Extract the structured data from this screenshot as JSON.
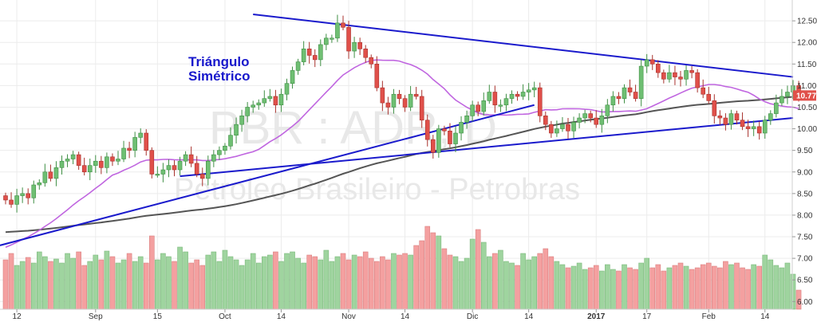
{
  "chart_data": {
    "type": "candlestick",
    "watermark_symbol": "PBR : ADR, D",
    "watermark_name": "Petroleo Brasileiro - Petrobras",
    "annotation": [
      "Triángulo",
      "Simétrico"
    ],
    "last_price": "10.77",
    "y_axis": {
      "side": "right",
      "ylim": [
        5.95,
        12.65
      ],
      "ticks": [
        "6.00",
        "6.50",
        "7.00",
        "7.50",
        "8.00",
        "8.50",
        "9.00",
        "9.50",
        "10.00",
        "10.50",
        "11.00",
        "11.50",
        "12.00",
        "12.50"
      ]
    },
    "x_axis": {
      "labels": [
        {
          "text": "12",
          "bar": 2
        },
        {
          "text": "Sep",
          "bar": 16
        },
        {
          "text": "15",
          "bar": 27
        },
        {
          "text": "Oct",
          "bar": 39
        },
        {
          "text": "14",
          "bar": 49
        },
        {
          "text": "Nov",
          "bar": 61
        },
        {
          "text": "14",
          "bar": 71
        },
        {
          "text": "Dic",
          "bar": 83
        },
        {
          "text": "14",
          "bar": 93
        },
        {
          "text": "2017",
          "bar": 105
        },
        {
          "text": "17",
          "bar": 114
        },
        {
          "text": "Feb",
          "bar": 125
        },
        {
          "text": "14",
          "bar": 135
        }
      ]
    },
    "colors": {
      "up": "#6fbf73",
      "down": "#e0504a",
      "ma_fast": "#c066e0",
      "ma_slow": "#555555",
      "trendline": "#1a1acc",
      "vol_up": "#9fd49f",
      "vol_down": "#f4a0a0",
      "last_price_bg": "#e0504a"
    },
    "close": [
      8.35,
      8.25,
      8.45,
      8.5,
      8.4,
      8.7,
      8.75,
      9.0,
      8.85,
      9.1,
      9.25,
      9.3,
      9.4,
      9.15,
      9.0,
      9.15,
      9.25,
      9.1,
      9.35,
      9.25,
      9.3,
      9.55,
      9.5,
      9.8,
      9.9,
      9.5,
      8.95,
      8.95,
      9.05,
      9.15,
      9.05,
      9.25,
      9.4,
      9.2,
      8.95,
      8.85,
      9.25,
      9.4,
      9.5,
      9.6,
      9.85,
      10.1,
      10.3,
      10.5,
      10.55,
      10.6,
      10.7,
      10.75,
      10.55,
      10.8,
      11.05,
      11.35,
      11.55,
      11.85,
      11.7,
      11.6,
      11.95,
      12.1,
      12.1,
      12.45,
      12.35,
      11.8,
      12.0,
      11.85,
      11.65,
      11.5,
      10.95,
      10.6,
      10.5,
      10.8,
      10.7,
      10.5,
      10.8,
      10.75,
      10.2,
      9.75,
      9.45,
      10.0,
      9.95,
      9.65,
      9.9,
      10.15,
      10.3,
      10.55,
      10.4,
      10.65,
      10.85,
      10.55,
      10.55,
      10.7,
      10.8,
      10.75,
      10.85,
      10.9,
      10.95,
      10.3,
      10.1,
      9.9,
      10.0,
      10.1,
      9.95,
      10.15,
      10.25,
      10.35,
      10.25,
      10.1,
      10.3,
      10.55,
      10.75,
      10.7,
      10.95,
      10.85,
      10.7,
      11.45,
      11.6,
      11.5,
      11.3,
      11.15,
      11.3,
      11.2,
      11.15,
      11.35,
      11.3,
      10.95,
      10.8,
      10.65,
      10.3,
      10.25,
      10.1,
      10.35,
      10.2,
      10.05,
      10.0,
      10.05,
      9.9,
      10.2,
      10.35,
      10.6,
      10.75,
      10.85,
      11.0,
      10.77
    ],
    "volume_relative": [
      0.62,
      0.7,
      0.55,
      0.6,
      0.65,
      0.58,
      0.72,
      0.66,
      0.6,
      0.63,
      0.58,
      0.7,
      0.64,
      0.72,
      0.55,
      0.6,
      0.68,
      0.62,
      0.73,
      0.66,
      0.58,
      0.62,
      0.7,
      0.6,
      0.66,
      0.58,
      0.92,
      0.62,
      0.7,
      0.66,
      0.6,
      0.78,
      0.72,
      0.58,
      0.62,
      0.55,
      0.68,
      0.72,
      0.6,
      0.74,
      0.66,
      0.62,
      0.55,
      0.62,
      0.7,
      0.58,
      0.66,
      0.68,
      0.72,
      0.6,
      0.7,
      0.72,
      0.64,
      0.58,
      0.68,
      0.66,
      0.62,
      0.74,
      0.6,
      0.66,
      0.7,
      0.62,
      0.68,
      0.66,
      0.72,
      0.64,
      0.6,
      0.66,
      0.62,
      0.7,
      0.68,
      0.7,
      0.68,
      0.8,
      0.86,
      1.04,
      0.96,
      0.92,
      0.76,
      0.68,
      0.66,
      0.6,
      0.64,
      0.88,
      1.0,
      0.84,
      0.66,
      0.7,
      0.74,
      0.6,
      0.58,
      0.55,
      0.7,
      0.62,
      0.66,
      0.7,
      0.76,
      0.66,
      0.6,
      0.56,
      0.52,
      0.54,
      0.58,
      0.5,
      0.52,
      0.55,
      0.48,
      0.56,
      0.5,
      0.48,
      0.56,
      0.52,
      0.5,
      0.58,
      0.64,
      0.52,
      0.56,
      0.48,
      0.52,
      0.55,
      0.58,
      0.54,
      0.5,
      0.52,
      0.56,
      0.58,
      0.54,
      0.52,
      0.6,
      0.56,
      0.58,
      0.52,
      0.5,
      0.56,
      0.54,
      0.68,
      0.62,
      0.55,
      0.52,
      0.58,
      0.44,
      0.24
    ]
  }
}
